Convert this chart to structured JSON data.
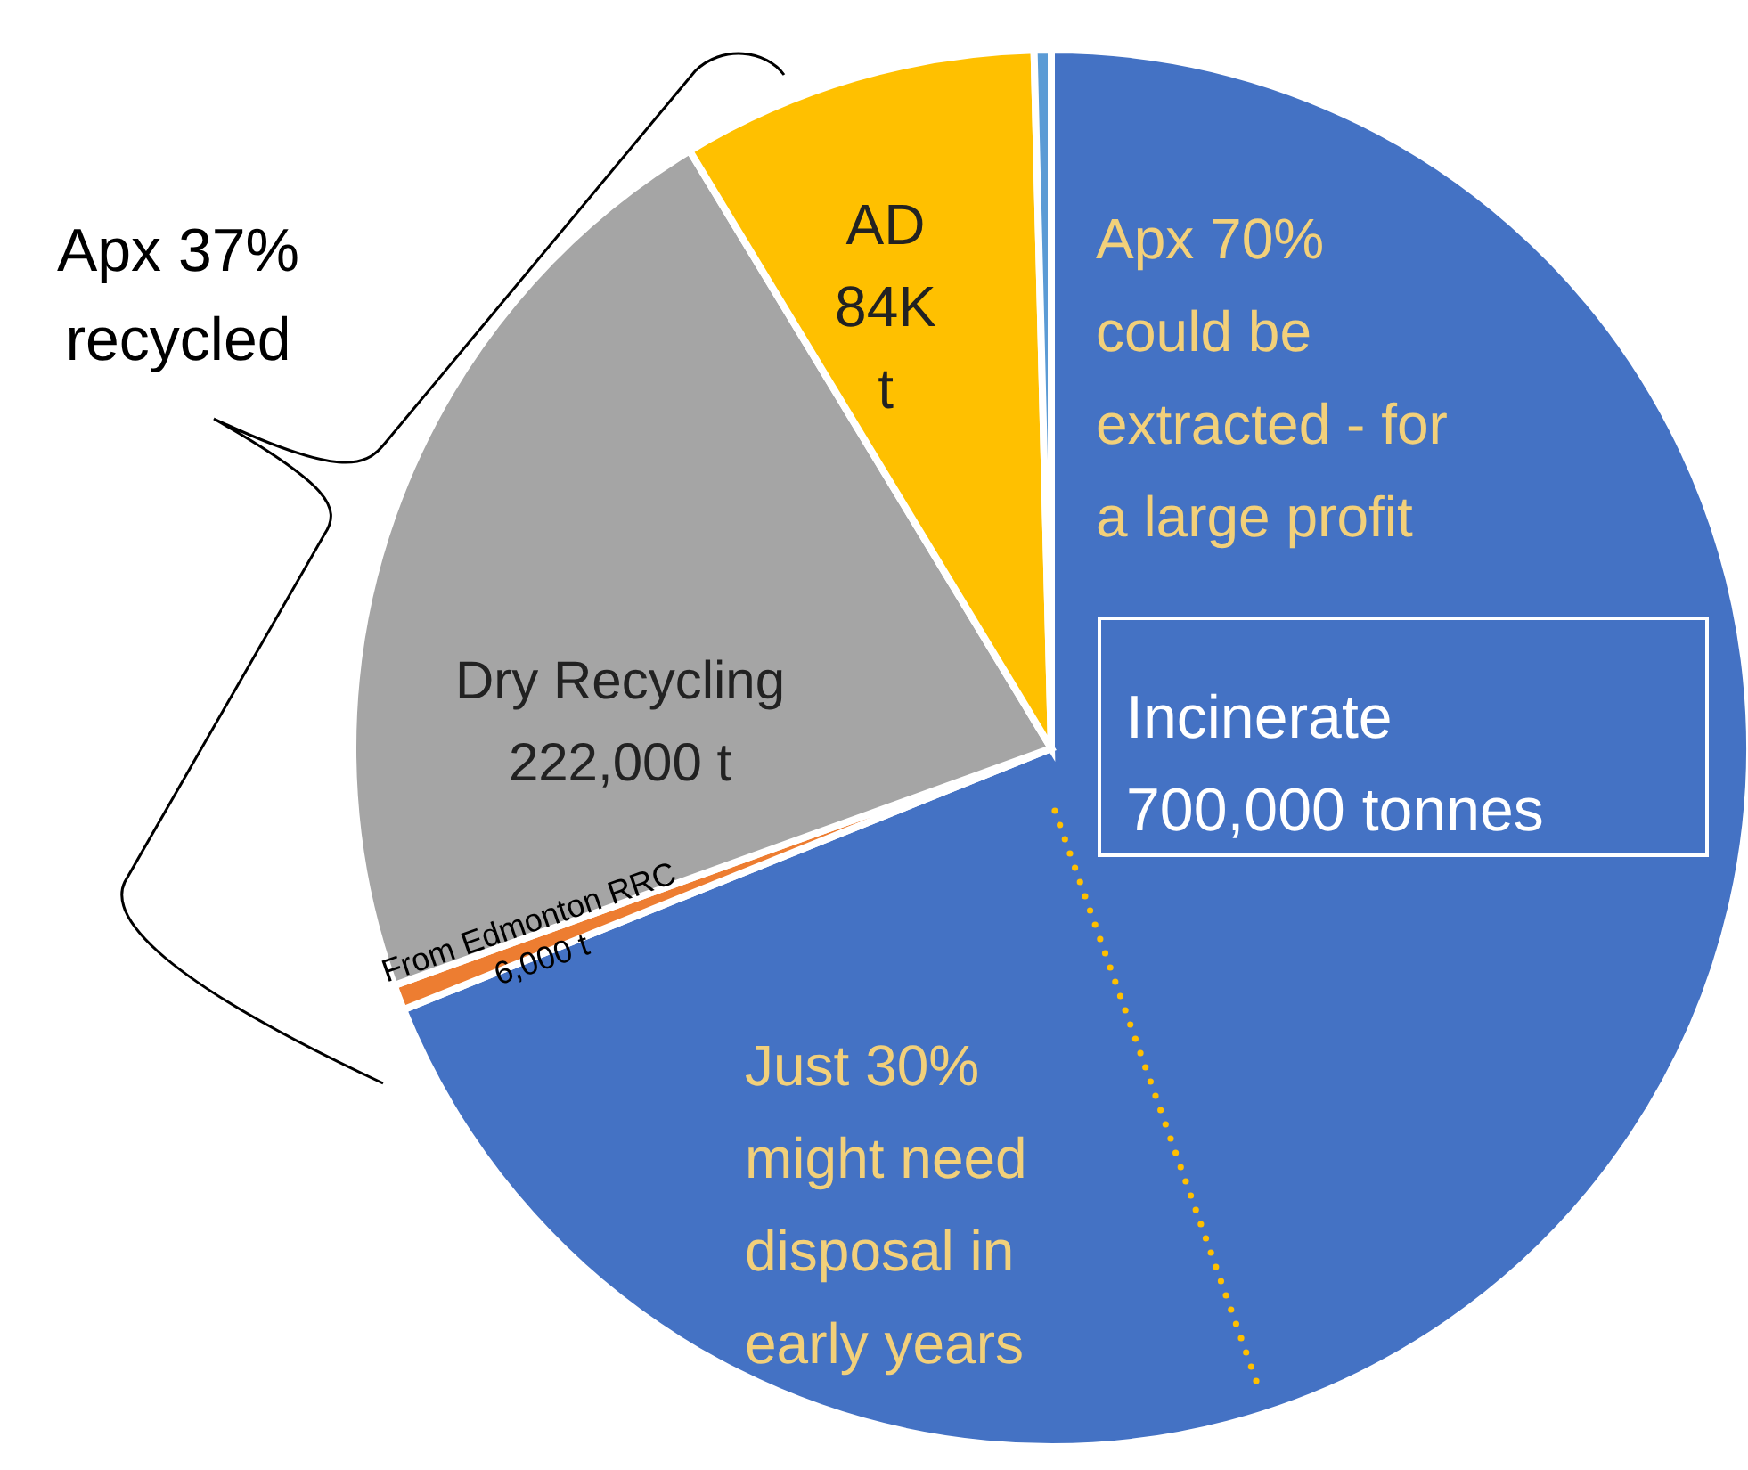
{
  "chart_data": {
    "type": "pie",
    "categories": [
      "Incinerate\n700,000 tonnes",
      "From Edmonton RRC\n6,000 t",
      "Dry Recycling\n222,000 t",
      "AD\n84K\nt",
      null
    ],
    "values": [
      700000,
      6000,
      222000,
      84000,
      4000
    ],
    "colors": [
      "#4472c4",
      "#ed7d31",
      "#a5a5a5",
      "#ffc000",
      "#5b9bd5"
    ],
    "annotations": [
      "Apx 37%\nrecycled",
      "Apx 70%\ncould be\nextracted - for\na large profit",
      "Just 30%\nmight need\ndisposal in\nearly years"
    ]
  }
}
